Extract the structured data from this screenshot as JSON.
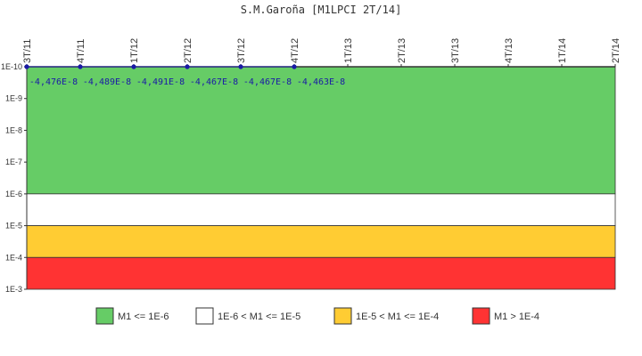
{
  "chart_data": {
    "type": "line",
    "title": "S.M.Garoña [M1LPCI 2T/14]",
    "x_categories": [
      "3T/11",
      "4T/11",
      "1T/12",
      "2T/12",
      "3T/12",
      "4T/12",
      "1T/13",
      "2T/13",
      "3T/13",
      "4T/13",
      "1T/14",
      "2T/14"
    ],
    "y_scale": "log",
    "y_axis_inverted": true,
    "y_ticks": [
      "1E-10",
      "1E-9",
      "1E-8",
      "1E-7",
      "1E-6",
      "1E-5",
      "1E-4",
      "1E-3"
    ],
    "series": [
      {
        "points": [
          {
            "x": "3T/11",
            "label": "-4,476E-8"
          },
          {
            "x": "4T/11",
            "label": "-4,489E-8"
          },
          {
            "x": "1T/12",
            "label": "-4,491E-8"
          },
          {
            "x": "2T/12",
            "label": "-4,467E-8"
          },
          {
            "x": "3T/12",
            "label": "-4,467E-8"
          },
          {
            "x": "4T/12",
            "label": "-4,463E-8"
          }
        ],
        "color": "#1a1aa6"
      }
    ],
    "bands": [
      {
        "from_exp": -10,
        "to_exp": -6,
        "color": "#66cc66",
        "legend": "M1 <= 1E-6"
      },
      {
        "from_exp": -6,
        "to_exp": -5,
        "color": "#ffffff",
        "legend": "1E-6 < M1 <= 1E-5"
      },
      {
        "from_exp": -5,
        "to_exp": -4,
        "color": "#ffcc33",
        "legend": "1E-5 < M1 <= 1E-4"
      },
      {
        "from_exp": -4,
        "to_exp": -3,
        "color": "#ff3333",
        "legend": "M1 > 1E-4"
      }
    ],
    "grid": false,
    "legend_position": "bottom"
  }
}
